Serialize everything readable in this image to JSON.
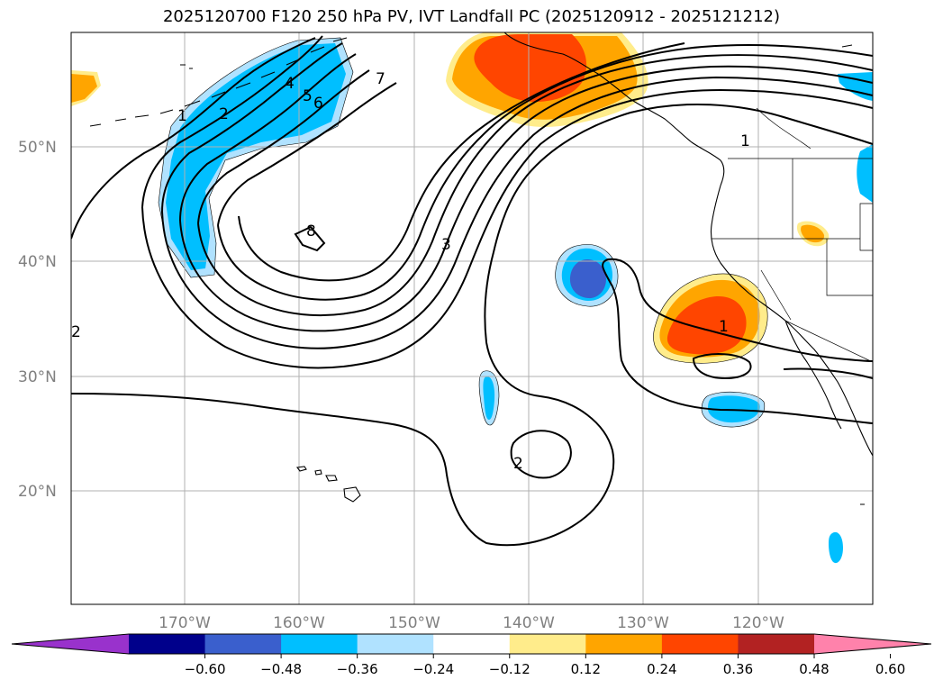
{
  "title": "2025120700 F120 250 hPa PV, IVT Landfall PC (2025120912 - 2025121212)",
  "lat_labels": [
    "50°N",
    "40°N",
    "30°N",
    "20°N"
  ],
  "lon_labels": [
    "170°W",
    "160°W",
    "150°W",
    "140°W",
    "130°W",
    "120°W"
  ],
  "colorbar": {
    "labels": [
      "−0.60",
      "−0.48",
      "−0.36",
      "−0.24",
      "−0.12",
      "0.12",
      "0.24",
      "0.36",
      "0.48",
      "0.60"
    ],
    "colors": [
      "#9932cc",
      "#00008b",
      "#3a5fcd",
      "#00bfff",
      "#b0e2ff",
      "#ffffff",
      "#ffec8b",
      "#ffa500",
      "#ff4500",
      "#b22222",
      "#ff82ab"
    ]
  },
  "contour_labels": [
    "1",
    "2",
    "4",
    "5",
    "6",
    "7",
    "8",
    "1",
    "3",
    "1",
    "2",
    "2"
  ],
  "map_colors": {
    "neg_dark": "#3a5fcd",
    "neg_mid": "#00bfff",
    "neg_light": "#b0e2ff",
    "pos_light": "#ffec8b",
    "pos_mid": "#ffa500",
    "pos_strong": "#ff4500"
  }
}
